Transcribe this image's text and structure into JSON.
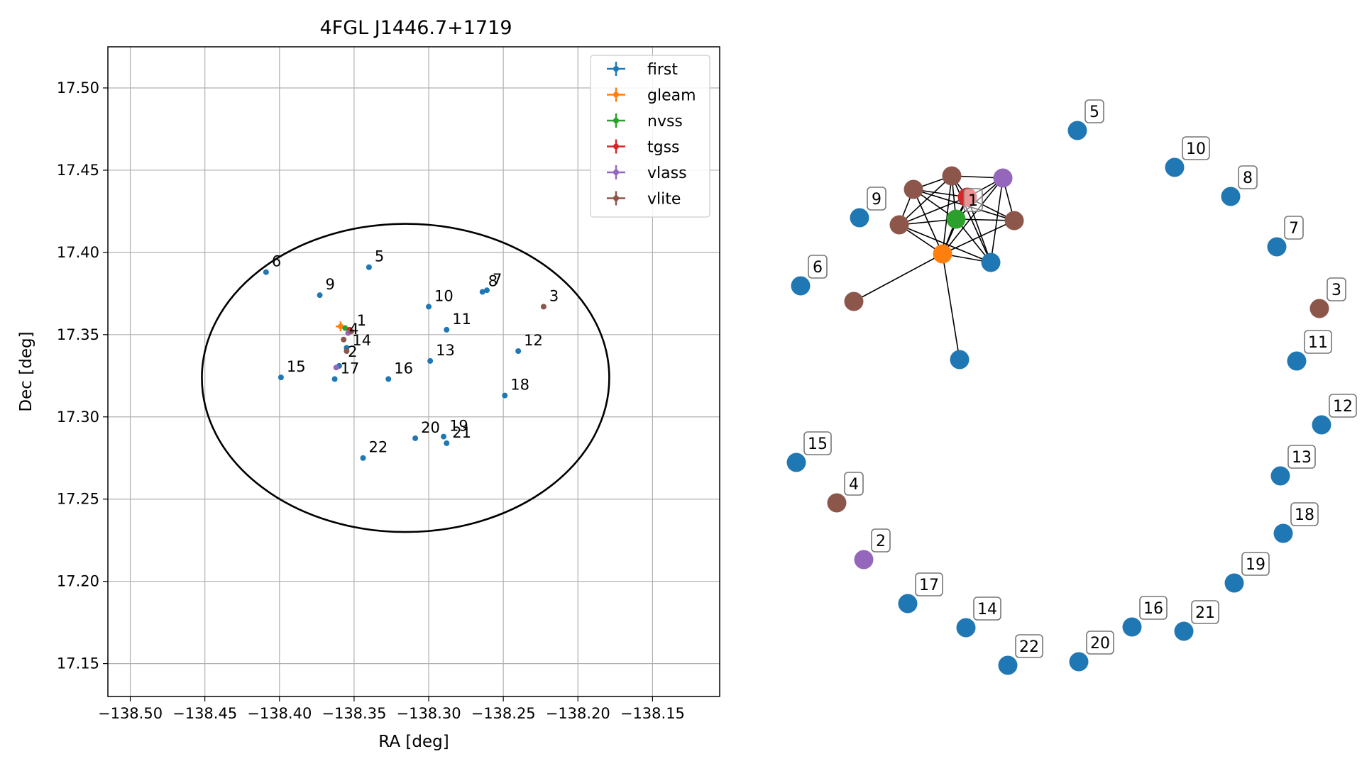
{
  "chart_data": [
    {
      "type": "scatter",
      "title": "4FGL J1446.7+1719",
      "xlabel": "RA [deg]",
      "ylabel": "Dec [deg]",
      "xlim": [
        -138.515,
        -138.105
      ],
      "ylim": [
        17.13,
        17.525
      ],
      "x_ticks": [
        -138.5,
        -138.45,
        -138.4,
        -138.35,
        -138.3,
        -138.25,
        -138.2,
        -138.15
      ],
      "x_tick_labels": [
        "−138.50",
        "−138.45",
        "−138.40",
        "−138.35",
        "−138.30",
        "−138.25",
        "−138.20",
        "−138.15"
      ],
      "y_ticks": [
        17.15,
        17.2,
        17.25,
        17.3,
        17.35,
        17.4,
        17.45,
        17.5
      ],
      "y_tick_labels": [
        "17.15",
        "17.20",
        "17.25",
        "17.30",
        "17.35",
        "17.40",
        "17.45",
        "17.50"
      ],
      "grid": true,
      "legend_position": "top-right",
      "ellipse": {
        "center": [
          -138.3155,
          17.3237
        ],
        "semi_axis_ra": 0.1365,
        "semi_axis_dec": 0.0937,
        "color": "#000000"
      },
      "series": [
        {
          "name": "first",
          "color": "#1f77b4",
          "marker": "errorbar"
        },
        {
          "name": "gleam",
          "color": "#ff7f0e",
          "marker": "errorbar"
        },
        {
          "name": "nvss",
          "color": "#2ca02c",
          "marker": "errorbar"
        },
        {
          "name": "tgss",
          "color": "#d62728",
          "marker": "errorbar"
        },
        {
          "name": "vlass",
          "color": "#9467bd",
          "marker": "errorbar"
        },
        {
          "name": "vlite",
          "color": "#8c564b",
          "marker": "errorbar"
        }
      ],
      "points": [
        {
          "series": "first",
          "x": -138.409,
          "y": 17.388
        },
        {
          "series": "first",
          "x": -138.34,
          "y": 17.391
        },
        {
          "series": "first",
          "x": -138.373,
          "y": 17.374
        },
        {
          "series": "first",
          "x": -138.3,
          "y": 17.367
        },
        {
          "series": "first",
          "x": -138.264,
          "y": 17.376
        },
        {
          "series": "first",
          "x": -138.261,
          "y": 17.377
        },
        {
          "series": "first",
          "x": -138.288,
          "y": 17.353
        },
        {
          "series": "first",
          "x": -138.24,
          "y": 17.34
        },
        {
          "series": "first",
          "x": -138.299,
          "y": 17.334
        },
        {
          "series": "first",
          "x": -138.327,
          "y": 17.323
        },
        {
          "series": "first",
          "x": -138.249,
          "y": 17.313
        },
        {
          "series": "first",
          "x": -138.399,
          "y": 17.324
        },
        {
          "series": "first",
          "x": -138.363,
          "y": 17.323
        },
        {
          "series": "first",
          "x": -138.36,
          "y": 17.331
        },
        {
          "series": "first",
          "x": -138.355,
          "y": 17.342
        },
        {
          "series": "first",
          "x": -138.309,
          "y": 17.287
        },
        {
          "series": "first",
          "x": -138.29,
          "y": 17.288
        },
        {
          "series": "first",
          "x": -138.288,
          "y": 17.284
        },
        {
          "series": "first",
          "x": -138.344,
          "y": 17.275
        },
        {
          "series": "gleam",
          "x": -138.359,
          "y": 17.355
        },
        {
          "series": "nvss",
          "x": -138.356,
          "y": 17.354
        },
        {
          "series": "tgss",
          "x": -138.353,
          "y": 17.353
        },
        {
          "series": "vlass",
          "x": -138.354,
          "y": 17.351
        },
        {
          "series": "vlass",
          "x": -138.362,
          "y": 17.33
        },
        {
          "series": "vlite",
          "x": -138.352,
          "y": 17.352
        },
        {
          "series": "vlite",
          "x": -138.357,
          "y": 17.347
        },
        {
          "series": "vlite",
          "x": -138.355,
          "y": 17.34
        },
        {
          "series": "vlite",
          "x": -138.223,
          "y": 17.367
        }
      ],
      "labels": [
        {
          "text": "6",
          "x": -138.409,
          "y": 17.388
        },
        {
          "text": "5",
          "x": -138.34,
          "y": 17.391
        },
        {
          "text": "9",
          "x": -138.373,
          "y": 17.374
        },
        {
          "text": "10",
          "x": -138.3,
          "y": 17.367
        },
        {
          "text": "8",
          "x": -138.264,
          "y": 17.376
        },
        {
          "text": "7",
          "x": -138.261,
          "y": 17.377
        },
        {
          "text": "3",
          "x": -138.223,
          "y": 17.367
        },
        {
          "text": "1",
          "x": -138.352,
          "y": 17.352
        },
        {
          "text": "11",
          "x": -138.288,
          "y": 17.353
        },
        {
          "text": "4",
          "x": -138.357,
          "y": 17.347
        },
        {
          "text": "12",
          "x": -138.24,
          "y": 17.34
        },
        {
          "text": "13",
          "x": -138.299,
          "y": 17.334
        },
        {
          "text": "14",
          "x": -138.355,
          "y": 17.34
        },
        {
          "text": "2",
          "x": -138.358,
          "y": 17.333
        },
        {
          "text": "15",
          "x": -138.399,
          "y": 17.324
        },
        {
          "text": "17",
          "x": -138.363,
          "y": 17.323
        },
        {
          "text": "16",
          "x": -138.327,
          "y": 17.323
        },
        {
          "text": "18",
          "x": -138.249,
          "y": 17.313
        },
        {
          "text": "20",
          "x": -138.309,
          "y": 17.287
        },
        {
          "text": "19",
          "x": -138.29,
          "y": 17.288
        },
        {
          "text": "21",
          "x": -138.288,
          "y": 17.284
        },
        {
          "text": "22",
          "x": -138.344,
          "y": 17.275
        }
      ]
    },
    {
      "type": "network",
      "nodes": [
        {
          "id": "5",
          "series": "first",
          "label": "5"
        },
        {
          "id": "10",
          "series": "first",
          "label": "10"
        },
        {
          "id": "8",
          "series": "first",
          "label": "8"
        },
        {
          "id": "7",
          "series": "first",
          "label": "7"
        },
        {
          "id": "3",
          "series": "vlite",
          "label": "3"
        },
        {
          "id": "11",
          "series": "first",
          "label": "11"
        },
        {
          "id": "12",
          "series": "first",
          "label": "12"
        },
        {
          "id": "13",
          "series": "first",
          "label": "13"
        },
        {
          "id": "18",
          "series": "first",
          "label": "18"
        },
        {
          "id": "19",
          "series": "first",
          "label": "19"
        },
        {
          "id": "21",
          "series": "first",
          "label": "21"
        },
        {
          "id": "16",
          "series": "first",
          "label": "16"
        },
        {
          "id": "20",
          "series": "first",
          "label": "20"
        },
        {
          "id": "22",
          "series": "first",
          "label": "22"
        },
        {
          "id": "14",
          "series": "first",
          "label": "14"
        },
        {
          "id": "17",
          "series": "first",
          "label": "17"
        },
        {
          "id": "2",
          "series": "vlass",
          "label": "2"
        },
        {
          "id": "4",
          "series": "vlite",
          "label": "4"
        },
        {
          "id": "15",
          "series": "first",
          "label": "15"
        },
        {
          "id": "6",
          "series": "first",
          "label": "6"
        },
        {
          "id": "9",
          "series": "first",
          "label": "9"
        },
        {
          "id": "1",
          "series": "nvss",
          "label": "1"
        },
        {
          "id": "gleam",
          "series": "gleam",
          "label": ""
        },
        {
          "id": "tgss",
          "series": "tgss",
          "label": ""
        },
        {
          "id": "vlass_c",
          "series": "vlass",
          "label": ""
        },
        {
          "id": "vlite_a",
          "series": "vlite",
          "label": ""
        },
        {
          "id": "vlite_b",
          "series": "vlite",
          "label": ""
        },
        {
          "id": "vlite_c",
          "series": "vlite",
          "label": ""
        },
        {
          "id": "vlite_d",
          "series": "vlite",
          "label": ""
        },
        {
          "id": "vlite_e",
          "series": "vlite",
          "label": ""
        },
        {
          "id": "first_a",
          "series": "first",
          "label": ""
        },
        {
          "id": "first_b",
          "series": "first",
          "label": ""
        }
      ],
      "edges": [
        [
          "gleam",
          "1"
        ],
        [
          "gleam",
          "tgss"
        ],
        [
          "gleam",
          "vlass_c"
        ],
        [
          "gleam",
          "vlite_a"
        ],
        [
          "gleam",
          "vlite_b"
        ],
        [
          "gleam",
          "vlite_c"
        ],
        [
          "gleam",
          "vlite_d"
        ],
        [
          "gleam",
          "vlite_e"
        ],
        [
          "gleam",
          "first_a"
        ],
        [
          "gleam",
          "first_b"
        ],
        [
          "1",
          "tgss"
        ],
        [
          "1",
          "vlass_c"
        ],
        [
          "1",
          "vlite_a"
        ],
        [
          "1",
          "vlite_b"
        ],
        [
          "1",
          "vlite_c"
        ],
        [
          "1",
          "vlite_d"
        ],
        [
          "1",
          "first_a"
        ],
        [
          "tgss",
          "vlass_c"
        ],
        [
          "tgss",
          "vlite_a"
        ],
        [
          "tgss",
          "vlite_b"
        ],
        [
          "tgss",
          "vlite_c"
        ],
        [
          "tgss",
          "vlite_d"
        ],
        [
          "tgss",
          "first_a"
        ],
        [
          "vlass_c",
          "vlite_a"
        ],
        [
          "vlass_c",
          "vlite_d"
        ],
        [
          "vlass_c",
          "first_a"
        ],
        [
          "vlite_a",
          "vlite_b"
        ],
        [
          "vlite_a",
          "vlite_c"
        ],
        [
          "vlite_a",
          "first_a"
        ],
        [
          "vlite_b",
          "vlite_c"
        ],
        [
          "vlite_b",
          "vlite_d"
        ],
        [
          "vlite_c",
          "first_a"
        ]
      ]
    }
  ],
  "colors": {
    "first": "#1f77b4",
    "gleam": "#ff7f0e",
    "nvss": "#2ca02c",
    "tgss": "#d62728",
    "vlass": "#9467bd",
    "vlite": "#8c564b",
    "grid": "#b0b0b0",
    "edge": "#000000"
  }
}
